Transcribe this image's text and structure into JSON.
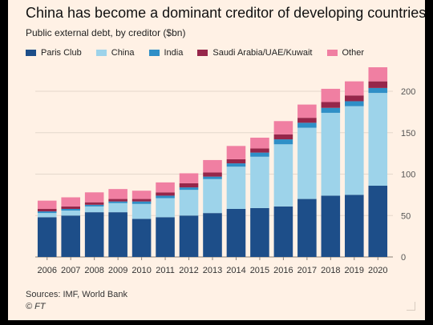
{
  "header": {
    "title": "China has become a dominant creditor of developing countries",
    "subtitle": "Public external debt, by creditor ($bn)"
  },
  "footer": {
    "source": "Sources: IMF, World Bank",
    "copyright": "© FT"
  },
  "colors": {
    "background": "#fff1e5",
    "gridline": "#e4d8cc",
    "axis_text": "#555555"
  },
  "chart_data": {
    "type": "bar",
    "stacked": true,
    "categories": [
      "2006",
      "2007",
      "2008",
      "2009",
      "2010",
      "2011",
      "2012",
      "2013",
      "2014",
      "2015",
      "2016",
      "2017",
      "2018",
      "2019",
      "2020"
    ],
    "ylim": [
      0,
      230
    ],
    "yticks": [
      0,
      50,
      100,
      150,
      200
    ],
    "grid": true,
    "legend_position": "top",
    "series": [
      {
        "name": "Paris Club",
        "color": "#1d4e89",
        "values": [
          48,
          50,
          54,
          54,
          46,
          48,
          50,
          53,
          58,
          59,
          61,
          70,
          74,
          75,
          86
        ]
      },
      {
        "name": "China",
        "color": "#9dd3ea",
        "values": [
          5,
          6,
          7,
          11,
          18,
          23,
          31,
          41,
          51,
          62,
          75,
          86,
          100,
          107,
          112
        ]
      },
      {
        "name": "India",
        "color": "#2f8fc7",
        "values": [
          2,
          2,
          2,
          2,
          3,
          3,
          3,
          3,
          4,
          5,
          6,
          6,
          6,
          6,
          6
        ]
      },
      {
        "name": "Saudi Arabia/UAE/Kuwait",
        "color": "#96264a",
        "values": [
          3,
          3,
          3,
          3,
          3,
          4,
          5,
          5,
          5,
          5,
          6,
          6,
          7,
          7,
          8
        ]
      },
      {
        "name": "Other",
        "color": "#f07fa2",
        "values": [
          10,
          11,
          12,
          12,
          10,
          12,
          12,
          15,
          16,
          13,
          16,
          16,
          16,
          17,
          17
        ]
      }
    ]
  }
}
